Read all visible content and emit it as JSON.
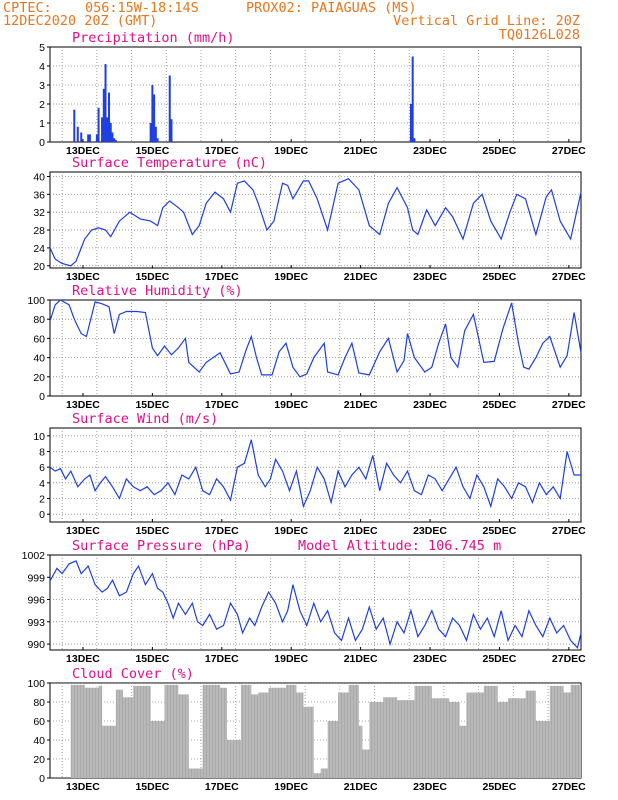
{
  "header": {
    "org": "CPTEC:",
    "coords": "056:15W-18:14S",
    "station": "PROX02: PAIAGUAS (MS)",
    "date": "12DEC2020 20Z (GMT)",
    "grid_note": "Vertical Grid Line: 20Z",
    "code": "TQ0126L028"
  },
  "colors": {
    "header": "#e8761e",
    "title": "#e0108a",
    "series": "#1f3fe0",
    "cloud": "#aaaaaa"
  },
  "x_ticks": [
    "13DEC",
    "15DEC",
    "17DEC",
    "19DEC",
    "21DEC",
    "23DEC",
    "25DEC",
    "27DEC"
  ],
  "chart_data": [
    {
      "type": "bar",
      "title": "Precipitation (mm/h)",
      "ylim": [
        0,
        5
      ],
      "yticks": [
        "0",
        "1",
        "2",
        "3",
        "4",
        "5"
      ],
      "x": [
        0.7,
        0.8,
        0.9,
        1.1,
        1.15,
        1.35,
        1.4,
        1.5,
        1.55,
        1.6,
        1.65,
        1.7,
        1.75,
        1.8,
        1.85,
        1.9,
        2.9,
        2.95,
        3.0,
        3.05,
        3.1,
        3.45,
        3.5,
        10.4,
        10.45,
        10.5
      ],
      "values": [
        1.7,
        0.8,
        0.5,
        0.4,
        0.4,
        0.4,
        1.8,
        1.3,
        2.8,
        4.1,
        1.3,
        2.6,
        1.0,
        0.5,
        0.2,
        0.1,
        1.0,
        3.0,
        2.5,
        0.8,
        0.2,
        3.5,
        1.2,
        2.0,
        4.5,
        0.2
      ]
    },
    {
      "type": "line",
      "title": "Surface Temperature (nC)",
      "ylim": [
        19.5,
        41
      ],
      "yticks": [
        "20",
        "24",
        "28",
        "32",
        "36",
        "40"
      ],
      "x": [
        0,
        0.15,
        0.35,
        0.6,
        0.75,
        0.85,
        1.0,
        1.2,
        1.4,
        1.6,
        1.75,
        2.0,
        2.3,
        2.6,
        2.9,
        3.1,
        3.25,
        3.45,
        3.7,
        3.85,
        4.1,
        4.3,
        4.5,
        4.75,
        5.0,
        5.2,
        5.4,
        5.6,
        5.85,
        6.0,
        6.25,
        6.45,
        6.7,
        6.85,
        7.0,
        7.3,
        7.45,
        7.7,
        8.0,
        8.3,
        8.6,
        8.9,
        9.2,
        9.5,
        9.75,
        10.0,
        10.3,
        10.45,
        10.6,
        10.85,
        11.1,
        11.4,
        11.6,
        11.9,
        12.2,
        12.45,
        12.7,
        13.0,
        13.25,
        13.45,
        13.7,
        14.0,
        14.3,
        14.45,
        14.7,
        15.0,
        15.3
      ],
      "y": [
        24,
        21.5,
        20.5,
        20,
        21,
        23,
        26,
        28,
        28.5,
        28,
        26.5,
        30,
        32,
        30.5,
        30,
        29,
        33,
        34.5,
        33,
        32,
        27,
        29,
        34,
        36.5,
        35,
        32,
        38.5,
        39,
        37,
        34,
        28,
        30,
        38.5,
        38,
        35,
        39,
        39,
        35,
        28,
        38.5,
        39.5,
        37,
        29,
        27,
        34,
        37.5,
        33,
        28,
        27,
        32.5,
        29,
        33,
        31,
        26,
        34,
        36,
        30,
        26,
        32,
        36,
        35,
        27,
        35.5,
        37,
        30,
        26,
        36.5
      ]
    },
    {
      "type": "line",
      "title": "Relative Humidity (%)",
      "ylim": [
        0,
        100
      ],
      "yticks": [
        "0",
        "20",
        "40",
        "60",
        "80",
        "100"
      ],
      "x": [
        0,
        0.15,
        0.3,
        0.55,
        0.7,
        0.9,
        1.05,
        1.3,
        1.5,
        1.7,
        1.85,
        2.0,
        2.2,
        2.5,
        2.75,
        2.95,
        3.1,
        3.3,
        3.5,
        3.7,
        3.9,
        4.0,
        4.3,
        4.5,
        4.7,
        4.9,
        5.2,
        5.45,
        5.65,
        5.8,
        5.95,
        6.1,
        6.4,
        6.6,
        6.8,
        7.0,
        7.2,
        7.4,
        7.6,
        7.9,
        8.0,
        8.3,
        8.5,
        8.7,
        8.9,
        9.2,
        9.5,
        9.75,
        10.0,
        10.2,
        10.3,
        10.5,
        10.8,
        11.0,
        11.2,
        11.4,
        11.55,
        11.75,
        11.95,
        12.2,
        12.5,
        12.8,
        13.05,
        13.3,
        13.5,
        13.65,
        13.8,
        14.0,
        14.2,
        14.4,
        14.7,
        14.9,
        15.1,
        15.3
      ],
      "y": [
        78,
        95,
        100,
        95,
        80,
        65,
        62,
        98,
        96,
        93,
        65,
        85,
        88,
        88,
        87,
        50,
        42,
        52,
        43,
        50,
        60,
        35,
        25,
        35,
        40,
        45,
        23,
        25,
        48,
        62,
        40,
        22,
        22,
        46,
        55,
        30,
        20,
        23,
        40,
        55,
        25,
        22,
        40,
        55,
        24,
        22,
        46,
        60,
        25,
        37,
        65,
        40,
        25,
        30,
        55,
        75,
        40,
        30,
        68,
        85,
        35,
        36,
        70,
        97,
        55,
        30,
        28,
        40,
        55,
        62,
        30,
        42,
        87,
        45
      ]
    },
    {
      "type": "line",
      "title": "Surface Wind (m/s)",
      "ylim": [
        -1,
        11
      ],
      "yticks": [
        "0",
        "2",
        "4",
        "6",
        "8",
        "10"
      ],
      "x": [
        0,
        0.15,
        0.3,
        0.45,
        0.6,
        0.8,
        1.0,
        1.15,
        1.3,
        1.45,
        1.6,
        1.8,
        2.0,
        2.2,
        2.4,
        2.6,
        2.8,
        3.0,
        3.2,
        3.4,
        3.6,
        3.8,
        4.0,
        4.2,
        4.4,
        4.6,
        4.8,
        5.0,
        5.2,
        5.4,
        5.6,
        5.8,
        6.0,
        6.2,
        6.35,
        6.5,
        6.7,
        6.9,
        7.1,
        7.3,
        7.5,
        7.7,
        7.9,
        8.1,
        8.3,
        8.5,
        8.7,
        8.9,
        9.1,
        9.3,
        9.5,
        9.7,
        9.9,
        10.1,
        10.3,
        10.5,
        10.7,
        10.9,
        11.1,
        11.3,
        11.5,
        11.7,
        11.9,
        12.1,
        12.3,
        12.5,
        12.7,
        12.9,
        13.1,
        13.3,
        13.5,
        13.7,
        13.9,
        14.1,
        14.3,
        14.5,
        14.7,
        14.9,
        15.1,
        15.3
      ],
      "y": [
        6,
        5.5,
        5.8,
        4.5,
        5.5,
        3.5,
        4.5,
        5.0,
        3.0,
        4.0,
        4.8,
        3.5,
        2.0,
        4.5,
        3.5,
        3.0,
        3.5,
        2.5,
        3.0,
        4.0,
        2.5,
        5.0,
        4.5,
        6.0,
        3.0,
        2.5,
        4.5,
        3.5,
        1.8,
        6.0,
        6.5,
        9.5,
        5.0,
        3.5,
        4.5,
        7.0,
        5.5,
        3.0,
        5.5,
        1.0,
        3.0,
        6.0,
        4.5,
        1.5,
        5.5,
        3.5,
        5.0,
        6.0,
        4.5,
        7.5,
        3.0,
        6.5,
        5.0,
        4.0,
        5.5,
        3.0,
        2.5,
        5.0,
        4.5,
        3.0,
        4.5,
        6.0,
        3.5,
        2.0,
        5.0,
        3.5,
        1.0,
        4.5,
        3.5,
        2.0,
        4.0,
        3.5,
        1.5,
        4.0,
        2.5,
        3.5,
        2.0,
        8.0,
        5.0,
        5.0
      ]
    },
    {
      "type": "line",
      "title": "Surface Pressure (hPa)",
      "annotation": "Model Altitude: 106.745 m",
      "ylim": [
        989.2,
        1002
      ],
      "yticks": [
        "990",
        "993",
        "996",
        "999",
        "1002"
      ],
      "x": [
        0,
        0.2,
        0.35,
        0.55,
        0.75,
        0.9,
        1.1,
        1.3,
        1.5,
        1.65,
        1.8,
        2.0,
        2.2,
        2.4,
        2.55,
        2.75,
        2.95,
        3.1,
        3.25,
        3.4,
        3.55,
        3.7,
        3.9,
        4.1,
        4.25,
        4.4,
        4.6,
        4.8,
        5.0,
        5.2,
        5.4,
        5.55,
        5.75,
        5.9,
        6.1,
        6.3,
        6.5,
        6.7,
        6.85,
        7.0,
        7.2,
        7.4,
        7.6,
        7.8,
        8.0,
        8.2,
        8.4,
        8.6,
        8.8,
        9.0,
        9.2,
        9.4,
        9.6,
        9.8,
        10.0,
        10.2,
        10.4,
        10.6,
        10.8,
        11.0,
        11.2,
        11.4,
        11.6,
        11.8,
        12.0,
        12.2,
        12.4,
        12.6,
        12.8,
        13.0,
        13.2,
        13.4,
        13.6,
        13.8,
        14.0,
        14.2,
        14.4,
        14.6,
        14.8,
        15.0,
        15.2,
        15.3
      ],
      "y": [
        998.5,
        1000.2,
        999.5,
        1000.8,
        1001.2,
        999.5,
        1000.5,
        998.0,
        997.0,
        997.5,
        998.6,
        996.5,
        997.0,
        999.5,
        1000.5,
        998.0,
        999.5,
        997.5,
        997.0,
        995.5,
        993.5,
        995.5,
        994.0,
        995.5,
        993.0,
        992.5,
        994.0,
        992.0,
        992.5,
        995.5,
        994.0,
        991.5,
        993.5,
        992.5,
        995.0,
        997.0,
        995.5,
        993.0,
        994.5,
        998.0,
        994.5,
        992.5,
        995.5,
        993.0,
        994.5,
        991.5,
        990.5,
        993.5,
        990.5,
        992.0,
        995.0,
        992.0,
        993.5,
        990.0,
        993.0,
        991.5,
        994.5,
        991.0,
        992.5,
        994.5,
        992.0,
        991.0,
        993.5,
        992.5,
        990.5,
        994.0,
        992.0,
        993.5,
        991.0,
        994.5,
        990.5,
        992.5,
        991.0,
        994.5,
        992.5,
        991.0,
        993.5,
        991.5,
        992.5,
        990.5,
        989.5,
        991.5
      ]
    },
    {
      "type": "area",
      "title": "Cloud Cover (%)",
      "ylim": [
        0,
        100
      ],
      "yticks": [
        "0",
        "20",
        "40",
        "60",
        "80",
        "100"
      ],
      "x": [
        0,
        0.5,
        0.6,
        1.0,
        1.4,
        1.5,
        1.9,
        2.1,
        2.4,
        2.9,
        3.3,
        3.7,
        4.0,
        4.4,
        4.9,
        5.1,
        5.5,
        5.8,
        6.0,
        6.3,
        6.8,
        7.1,
        7.3,
        7.6,
        7.8,
        8.0,
        8.3,
        8.6,
        8.9,
        9.0,
        9.2,
        9.6,
        10.0,
        10.5,
        11.0,
        11.5,
        11.8,
        12.0,
        12.5,
        12.9,
        13.2,
        13.7,
        14.0,
        14.4,
        14.8,
        15.0,
        15.3
      ],
      "y": [
        0,
        0,
        98,
        95,
        97,
        55,
        93,
        85,
        97,
        60,
        98,
        88,
        10,
        98,
        95,
        40,
        98,
        88,
        90,
        95,
        98,
        90,
        75,
        5,
        10,
        60,
        90,
        98,
        55,
        30,
        80,
        85,
        82,
        97,
        84,
        80,
        55,
        90,
        97,
        80,
        84,
        92,
        60,
        97,
        90,
        98,
        80
      ]
    }
  ]
}
